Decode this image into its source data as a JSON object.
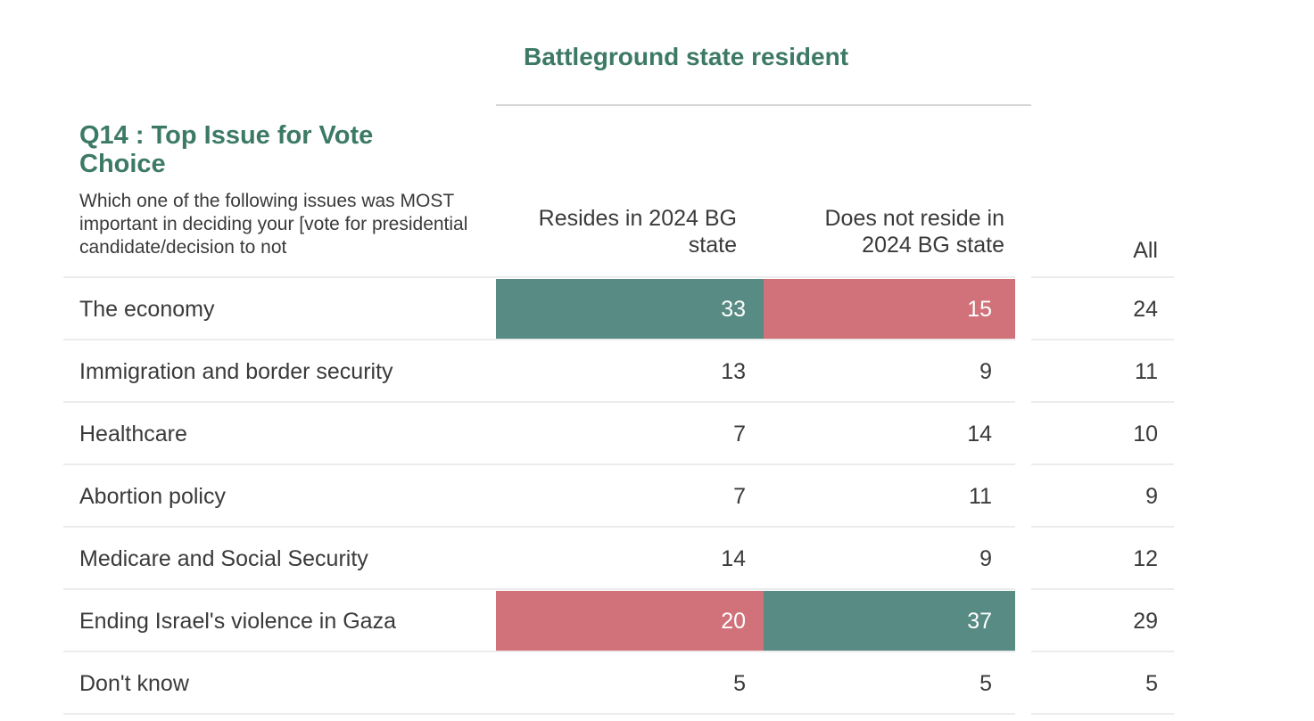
{
  "colors": {
    "title_green": "#3d7a65",
    "high": "#578b83",
    "low": "#d1727a",
    "text": "#3a3a3a",
    "rule": "#d4d4d4"
  },
  "header": {
    "group_title": "Battleground state resident",
    "question_title": "Q14 : Top Issue for Vote Choice",
    "question_text": "Which one of the following issues was MOST important in deciding your [vote for presidential candidate/decision to not"
  },
  "chart_data": {
    "type": "table",
    "columns": [
      "Resides in 2024 BG state",
      "Does not reside in 2024 BG state",
      "All"
    ],
    "rows": [
      {
        "label": "The economy",
        "values": [
          33,
          15,
          24
        ],
        "highlight": [
          "high",
          "low",
          null
        ]
      },
      {
        "label": "Immigration and border security",
        "values": [
          13,
          9,
          11
        ],
        "highlight": [
          null,
          null,
          null
        ]
      },
      {
        "label": "Healthcare",
        "values": [
          7,
          14,
          10
        ],
        "highlight": [
          null,
          null,
          null
        ]
      },
      {
        "label": "Abortion policy",
        "values": [
          7,
          11,
          9
        ],
        "highlight": [
          null,
          null,
          null
        ]
      },
      {
        "label": "Medicare and Social Security",
        "values": [
          14,
          9,
          12
        ],
        "highlight": [
          null,
          null,
          null
        ]
      },
      {
        "label": "Ending Israel's violence in Gaza",
        "values": [
          20,
          37,
          29
        ],
        "highlight": [
          "low",
          "high",
          null
        ]
      },
      {
        "label": "Don't know",
        "values": [
          5,
          5,
          5
        ],
        "highlight": [
          null,
          null,
          null
        ]
      }
    ]
  }
}
